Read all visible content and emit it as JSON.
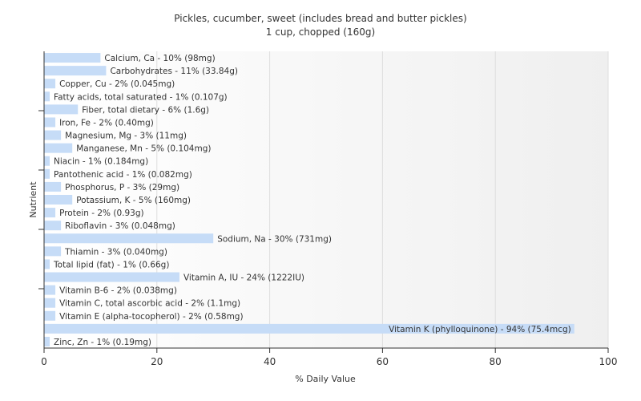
{
  "chart_data": {
    "type": "bar",
    "orientation": "horizontal",
    "title": "Pickles, cucumber, sweet (includes bread and butter pickles)",
    "subtitle": "1 cup, chopped (160g)",
    "xlabel": "% Daily Value",
    "ylabel": "Nutrient",
    "xlim": [
      0,
      100
    ],
    "xticks": [
      0,
      20,
      40,
      60,
      80,
      100
    ],
    "grid": true,
    "bar_color": "#c6dcf7",
    "categories": [
      "Calcium, Ca",
      "Carbohydrates",
      "Copper, Cu",
      "Fatty acids, total saturated",
      "Fiber, total dietary",
      "Iron, Fe",
      "Magnesium, Mg",
      "Manganese, Mn",
      "Niacin",
      "Pantothenic acid",
      "Phosphorus, P",
      "Potassium, K",
      "Protein",
      "Riboflavin",
      "Sodium, Na",
      "Thiamin",
      "Total lipid (fat)",
      "Vitamin A, IU",
      "Vitamin B-6",
      "Vitamin C, total ascorbic acid",
      "Vitamin E (alpha-tocopherol)",
      "Vitamin K (phylloquinone)",
      "Zinc, Zn"
    ],
    "values": [
      10,
      11,
      2,
      1,
      6,
      2,
      3,
      5,
      1,
      1,
      3,
      5,
      2,
      3,
      30,
      3,
      1,
      24,
      2,
      2,
      2,
      94,
      1
    ],
    "labels": [
      "Calcium, Ca - 10% (98mg)",
      "Carbohydrates - 11% (33.84g)",
      "Copper, Cu - 2% (0.045mg)",
      "Fatty acids, total saturated - 1% (0.107g)",
      "Fiber, total dietary - 6% (1.6g)",
      "Iron, Fe - 2% (0.40mg)",
      "Magnesium, Mg - 3% (11mg)",
      "Manganese, Mn - 5% (0.104mg)",
      "Niacin - 1% (0.184mg)",
      "Pantothenic acid - 1% (0.082mg)",
      "Phosphorus, P - 3% (29mg)",
      "Potassium, K - 5% (160mg)",
      "Protein - 2% (0.93g)",
      "Riboflavin - 3% (0.048mg)",
      "Sodium, Na - 30% (731mg)",
      "Thiamin - 3% (0.040mg)",
      "Total lipid (fat) - 1% (0.66g)",
      "Vitamin A, IU - 24% (1222IU)",
      "Vitamin B-6 - 2% (0.038mg)",
      "Vitamin C, total ascorbic acid - 2% (1.1mg)",
      "Vitamin E (alpha-tocopherol) - 2% (0.58mg)",
      "Vitamin K (phylloquinone) - 94% (75.4mcg)",
      "Zinc, Zn - 1% (0.19mg)"
    ]
  }
}
